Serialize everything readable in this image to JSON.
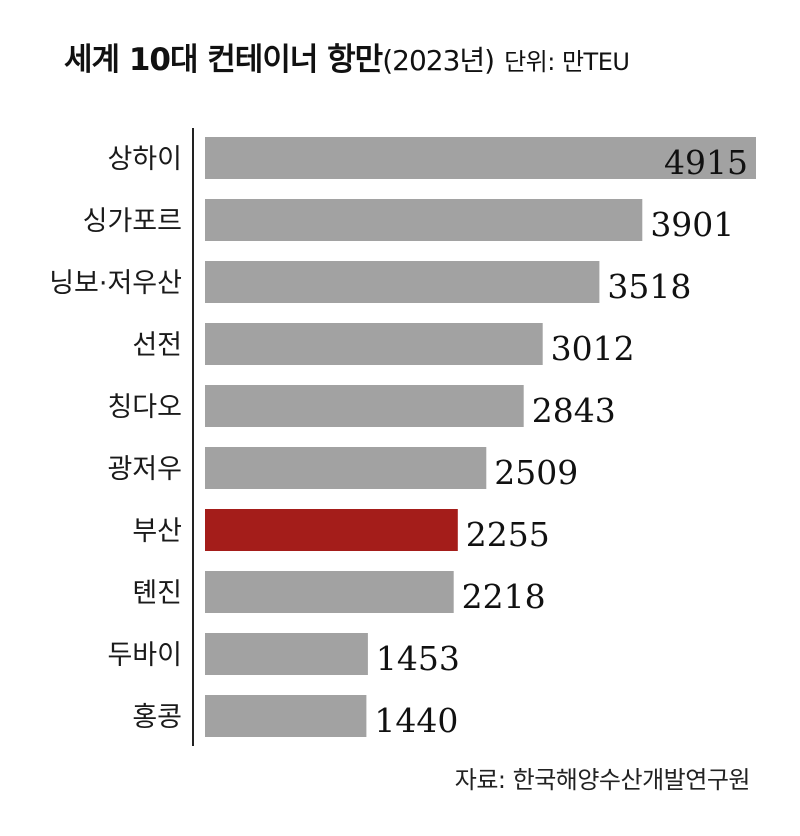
{
  "chart_data": {
    "type": "bar",
    "orientation": "horizontal",
    "title": "세계 10대 컨테이너 항만",
    "subtitle": "(2023년)",
    "unit_note": "단위: 만TEU",
    "categories": [
      "상하이",
      "싱가포르",
      "닝보·저우산",
      "선전",
      "칭다오",
      "광저우",
      "부산",
      "톈진",
      "두바이",
      "홍콩"
    ],
    "values": [
      4915,
      3901,
      3518,
      3012,
      2843,
      2509,
      2255,
      2218,
      1453,
      1440
    ],
    "value_labels": [
      "4915",
      "3901",
      "3518",
      "3012",
      "2843",
      "2509",
      "2255",
      "2218",
      "1453",
      "1440"
    ],
    "highlight_index": 6,
    "bar_color": "#a2a2a2",
    "highlight_color": "#a41d1a",
    "grid": false,
    "legend": "none",
    "xlim": [
      0,
      4915
    ]
  },
  "source": "자료: 한국해양수산개발연구원"
}
